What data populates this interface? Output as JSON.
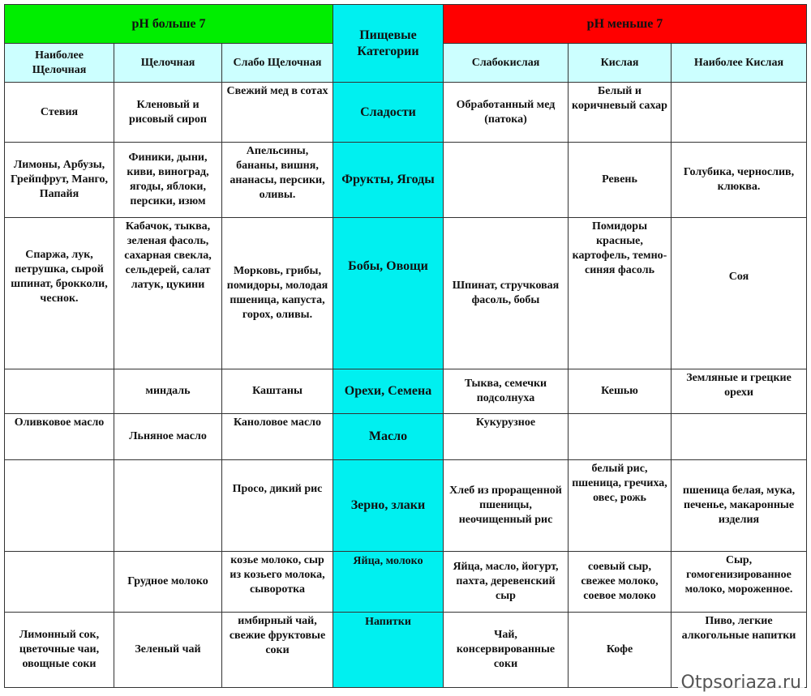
{
  "header": {
    "alkaline_group": "pH больше 7",
    "category_title": "Пищевые Категории",
    "acid_group": "pH меньше 7",
    "subheaders": [
      "Наиболее Щелочная",
      "Щелочная",
      "Слабо Щелочная",
      "Слабокислая",
      "Кислая",
      "Наиболее Кислая"
    ]
  },
  "colors": {
    "alkaline": "#00ee00",
    "acid": "#ff0000",
    "category": "#00f0f0",
    "subheader": "#ccffff"
  },
  "rows": [
    {
      "category": "Сладости",
      "cells": [
        "Стевия",
        "Кленовый и рисовый сироп",
        "Свежий мед в сотах",
        "Обработанный мед (патока)",
        "Белый и коричневый сахар",
        ""
      ]
    },
    {
      "category": "Фрукты, Ягоды",
      "cells": [
        "Лимоны, Арбузы, Грейпфрут, Манго, Папайя",
        "Финики, дыни, киви, виноград, ягоды, яблоки, персики, изюм",
        "Апельсины, бананы, вишня, ананасы, персики, оливы.",
        "",
        "Ревень",
        "Голубика, чернослив, клюква."
      ]
    },
    {
      "category": "Бобы, Овощи",
      "cells": [
        "Спаржа, лук, петрушка, сырой шпинат, брокколи, чеснок.",
        "Кабачок, тыква, зеленая фасоль, сахарная свекла, сельдерей, салат латук, цукини",
        "Морковь, грибы, помидоры, молодая пшеница, капуста, горох, оливы.",
        "Шпинат, стручковая фасоль, бобы",
        "Помидоры красные, картофель, темно-синяя фасоль",
        "Соя"
      ]
    },
    {
      "category": "Орехи, Семена",
      "cells": [
        "",
        "миндаль",
        "Каштаны",
        "Тыква, семечки подсолнуха",
        "Кешью",
        "Земляные и грецкие орехи"
      ]
    },
    {
      "category": "Масло",
      "cells": [
        "Оливковое масло",
        "Льняное масло",
        "Каноловое масло",
        "Кукурузное",
        "",
        ""
      ]
    },
    {
      "category": "Зерно, злаки",
      "cells": [
        "",
        "",
        "Просо, дикий рис",
        "Хлеб из проращенной пшеницы, неочищенный рис",
        "белый рис, пшеница, гречиха, овес, рожь",
        "пшеница белая, мука, печенье, макаронные изделия"
      ]
    },
    {
      "category": "Яйца, молоко",
      "cells": [
        "",
        "Грудное молоко",
        "козье молоко, сыр из козьего молока, сыворотка",
        "Яйца, масло, йогурт, пахта, деревенский сыр",
        "соевый сыр, свежее молоко, соевое молоко",
        "Сыр, гомогенизированное молоко, мороженное."
      ]
    },
    {
      "category": "Напитки",
      "cells": [
        "Лимонный сок, цветочные чаи, овощные соки",
        "Зеленый чай",
        "имбирный чай, свежие фруктовые соки",
        "Чай, консервированные соки",
        "Кофе",
        "Пиво, легкие алкогольные напитки"
      ]
    }
  ],
  "watermark": "Otpsoriaza.ru"
}
